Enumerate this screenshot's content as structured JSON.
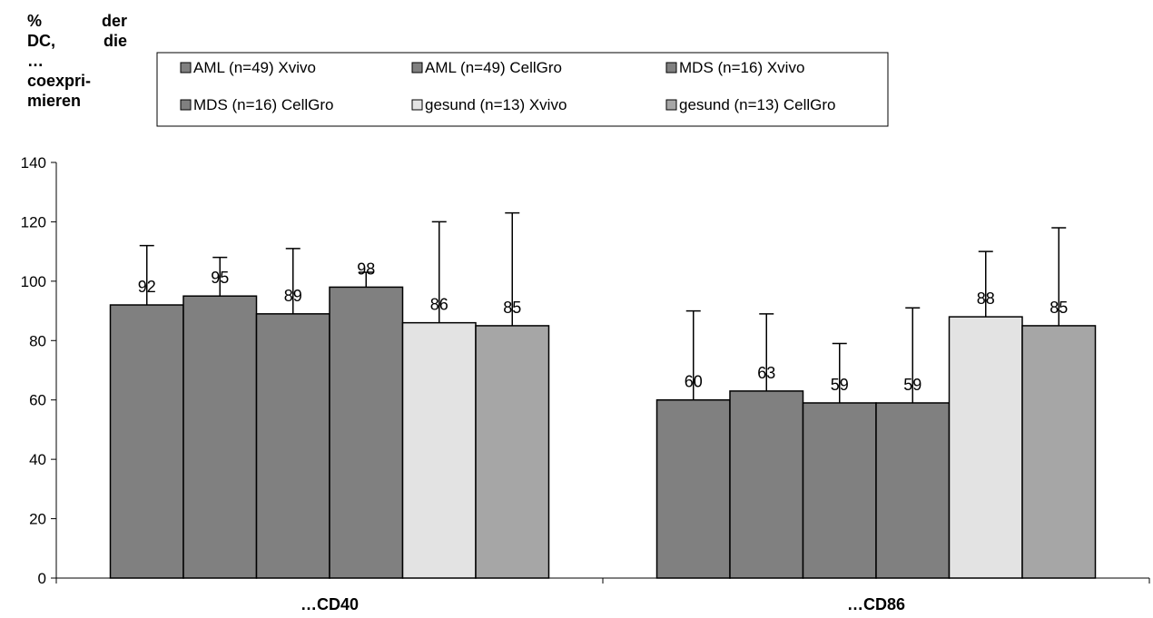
{
  "chart_data": {
    "type": "bar",
    "ylabel_lines": [
      "% der",
      "DC, die",
      "…",
      "coexpri-",
      "mieren"
    ],
    "xlabel": "",
    "title": "",
    "categories": [
      "…CD40",
      "…CD86"
    ],
    "ylim": [
      0,
      140
    ],
    "yticks": [
      0,
      20,
      40,
      60,
      80,
      100,
      120,
      140
    ],
    "grid": false,
    "legend_position": "top",
    "series": [
      {
        "name": "AML (n=49) Xvivo",
        "values": [
          92,
          60
        ],
        "errors": [
          20,
          30
        ],
        "color": "#808080"
      },
      {
        "name": "AML (n=49) CellGro",
        "values": [
          95,
          63
        ],
        "errors": [
          13,
          26
        ],
        "color": "#808080"
      },
      {
        "name": "MDS (n=16) Xvivo",
        "values": [
          89,
          59
        ],
        "errors": [
          22,
          20
        ],
        "color": "#808080"
      },
      {
        "name": "MDS (n=16) CellGro",
        "values": [
          98,
          59
        ],
        "errors": [
          5,
          32
        ],
        "color": "#808080"
      },
      {
        "name": "gesund (n=13) Xvivo",
        "values": [
          86,
          88
        ],
        "errors": [
          34,
          22
        ],
        "color": "#e3e3e3"
      },
      {
        "name": "gesund (n=13) CellGro",
        "values": [
          85,
          85
        ],
        "errors": [
          38,
          33
        ],
        "color": "#a6a6a6"
      }
    ]
  }
}
